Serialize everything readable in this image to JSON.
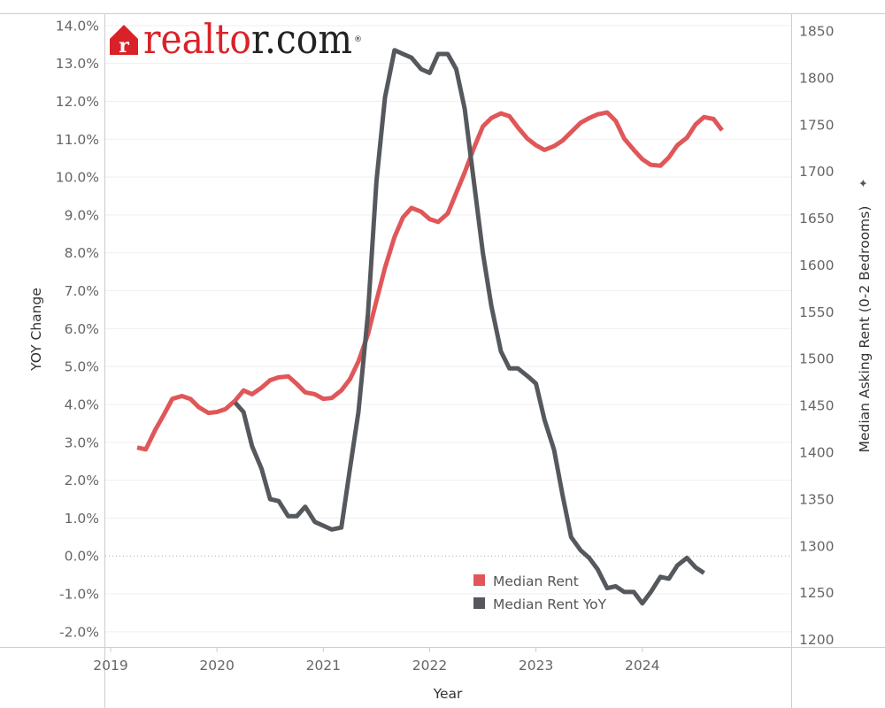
{
  "chart_data": {
    "type": "line",
    "logo": {
      "text": "realtor.com",
      "mark": "r",
      "trademark": "®",
      "color": "#d92228",
      "text_color": "#222222"
    },
    "xlabel": "Year",
    "ylabel_left": "YOY Change",
    "ylabel_right": "Median Asking Rent (0-2 Bedrooms)",
    "right_axis_marker": "✦",
    "x_ticks": [
      "2019",
      "2020",
      "2021",
      "2022",
      "2023",
      "2024"
    ],
    "x_range": [
      2018.95,
      2025.4
    ],
    "y_left_range": [
      -2.4,
      14.3
    ],
    "y_left_ticks": [
      "14.0%",
      "13.0%",
      "12.0%",
      "11.0%",
      "10.0%",
      "9.0%",
      "8.0%",
      "7.0%",
      "6.0%",
      "5.0%",
      "4.0%",
      "3.0%",
      "2.0%",
      "1.0%",
      "0.0%",
      "-1.0%",
      "-2.0%"
    ],
    "y_left_tick_values": [
      14,
      13,
      12,
      11,
      10,
      9,
      8,
      7,
      6,
      5,
      4,
      3,
      2,
      1,
      0,
      -1,
      -2
    ],
    "y_right_range": [
      1192,
      1868
    ],
    "y_right_ticks": [
      "1850",
      "1800",
      "1750",
      "1700",
      "1650",
      "1600",
      "1550",
      "1500",
      "1450",
      "1400",
      "1350",
      "1300",
      "1250",
      "1200"
    ],
    "y_right_tick_values": [
      1850,
      1800,
      1750,
      1700,
      1650,
      1600,
      1550,
      1500,
      1450,
      1400,
      1350,
      1300,
      1250,
      1200
    ],
    "zero_line": true,
    "grid": "horizontal",
    "legend_position": "bottom-center",
    "series": [
      {
        "name": "Median Rent",
        "axis": "right",
        "color": "#e05759",
        "points": [
          [
            2019.25,
            1405
          ],
          [
            2019.33,
            1403
          ],
          [
            2019.42,
            1424
          ],
          [
            2019.5,
            1440
          ],
          [
            2019.58,
            1457
          ],
          [
            2019.67,
            1460
          ],
          [
            2019.75,
            1457
          ],
          [
            2019.83,
            1448
          ],
          [
            2019.92,
            1442
          ],
          [
            2020.0,
            1443
          ],
          [
            2020.08,
            1446
          ],
          [
            2020.17,
            1455
          ],
          [
            2020.25,
            1466
          ],
          [
            2020.33,
            1462
          ],
          [
            2020.42,
            1469
          ],
          [
            2020.5,
            1477
          ],
          [
            2020.58,
            1480
          ],
          [
            2020.67,
            1481
          ],
          [
            2020.75,
            1473
          ],
          [
            2020.83,
            1464
          ],
          [
            2020.92,
            1462
          ],
          [
            2021.0,
            1457
          ],
          [
            2021.08,
            1458
          ],
          [
            2021.17,
            1466
          ],
          [
            2021.25,
            1478
          ],
          [
            2021.33,
            1497
          ],
          [
            2021.42,
            1526
          ],
          [
            2021.5,
            1562
          ],
          [
            2021.58,
            1597
          ],
          [
            2021.67,
            1630
          ],
          [
            2021.75,
            1651
          ],
          [
            2021.83,
            1661
          ],
          [
            2021.92,
            1657
          ],
          [
            2022.0,
            1649
          ],
          [
            2022.08,
            1646
          ],
          [
            2022.17,
            1655
          ],
          [
            2022.25,
            1677
          ],
          [
            2022.33,
            1699
          ],
          [
            2022.42,
            1726
          ],
          [
            2022.5,
            1748
          ],
          [
            2022.58,
            1757
          ],
          [
            2022.67,
            1762
          ],
          [
            2022.75,
            1759
          ],
          [
            2022.83,
            1747
          ],
          [
            2022.92,
            1735
          ],
          [
            2023.0,
            1728
          ],
          [
            2023.08,
            1723
          ],
          [
            2023.17,
            1727
          ],
          [
            2023.25,
            1733
          ],
          [
            2023.33,
            1742
          ],
          [
            2023.42,
            1752
          ],
          [
            2023.5,
            1757
          ],
          [
            2023.58,
            1761
          ],
          [
            2023.67,
            1763
          ],
          [
            2023.75,
            1754
          ],
          [
            2023.83,
            1735
          ],
          [
            2023.92,
            1723
          ],
          [
            2024.0,
            1713
          ],
          [
            2024.08,
            1707
          ],
          [
            2024.17,
            1706
          ],
          [
            2024.25,
            1715
          ],
          [
            2024.33,
            1728
          ],
          [
            2024.42,
            1736
          ],
          [
            2024.5,
            1750
          ],
          [
            2024.58,
            1758
          ],
          [
            2024.67,
            1756
          ],
          [
            2024.75,
            1744
          ]
        ]
      },
      {
        "name": "Median Rent YoY",
        "axis": "left",
        "color": "#55585d",
        "points": [
          [
            2020.17,
            4.05
          ],
          [
            2020.25,
            3.8
          ],
          [
            2020.33,
            2.9
          ],
          [
            2020.42,
            2.3
          ],
          [
            2020.5,
            1.5
          ],
          [
            2020.58,
            1.45
          ],
          [
            2020.67,
            1.05
          ],
          [
            2020.75,
            1.05
          ],
          [
            2020.83,
            1.3
          ],
          [
            2020.92,
            0.9
          ],
          [
            2021.0,
            0.8
          ],
          [
            2021.08,
            0.7
          ],
          [
            2021.17,
            0.75
          ],
          [
            2021.25,
            2.3
          ],
          [
            2021.33,
            3.8
          ],
          [
            2021.42,
            6.4
          ],
          [
            2021.5,
            9.9
          ],
          [
            2021.58,
            12.1
          ],
          [
            2021.67,
            13.35
          ],
          [
            2021.75,
            13.25
          ],
          [
            2021.83,
            13.15
          ],
          [
            2021.92,
            12.85
          ],
          [
            2022.0,
            12.75
          ],
          [
            2022.08,
            13.25
          ],
          [
            2022.17,
            13.25
          ],
          [
            2022.25,
            12.85
          ],
          [
            2022.33,
            11.8
          ],
          [
            2022.42,
            9.8
          ],
          [
            2022.5,
            8.0
          ],
          [
            2022.58,
            6.6
          ],
          [
            2022.67,
            5.4
          ],
          [
            2022.75,
            4.95
          ],
          [
            2022.83,
            4.95
          ],
          [
            2022.92,
            4.75
          ],
          [
            2023.0,
            4.55
          ],
          [
            2023.08,
            3.6
          ],
          [
            2023.17,
            2.8
          ],
          [
            2023.25,
            1.6
          ],
          [
            2023.33,
            0.5
          ],
          [
            2023.42,
            0.15
          ],
          [
            2023.5,
            -0.05
          ],
          [
            2023.58,
            -0.35
          ],
          [
            2023.67,
            -0.85
          ],
          [
            2023.75,
            -0.8
          ],
          [
            2023.83,
            -0.95
          ],
          [
            2023.92,
            -0.95
          ],
          [
            2024.0,
            -1.25
          ],
          [
            2024.08,
            -0.95
          ],
          [
            2024.17,
            -0.55
          ],
          [
            2024.25,
            -0.6
          ],
          [
            2024.33,
            -0.25
          ],
          [
            2024.42,
            -0.05
          ],
          [
            2024.5,
            -0.3
          ],
          [
            2024.58,
            -0.45
          ]
        ]
      }
    ]
  }
}
